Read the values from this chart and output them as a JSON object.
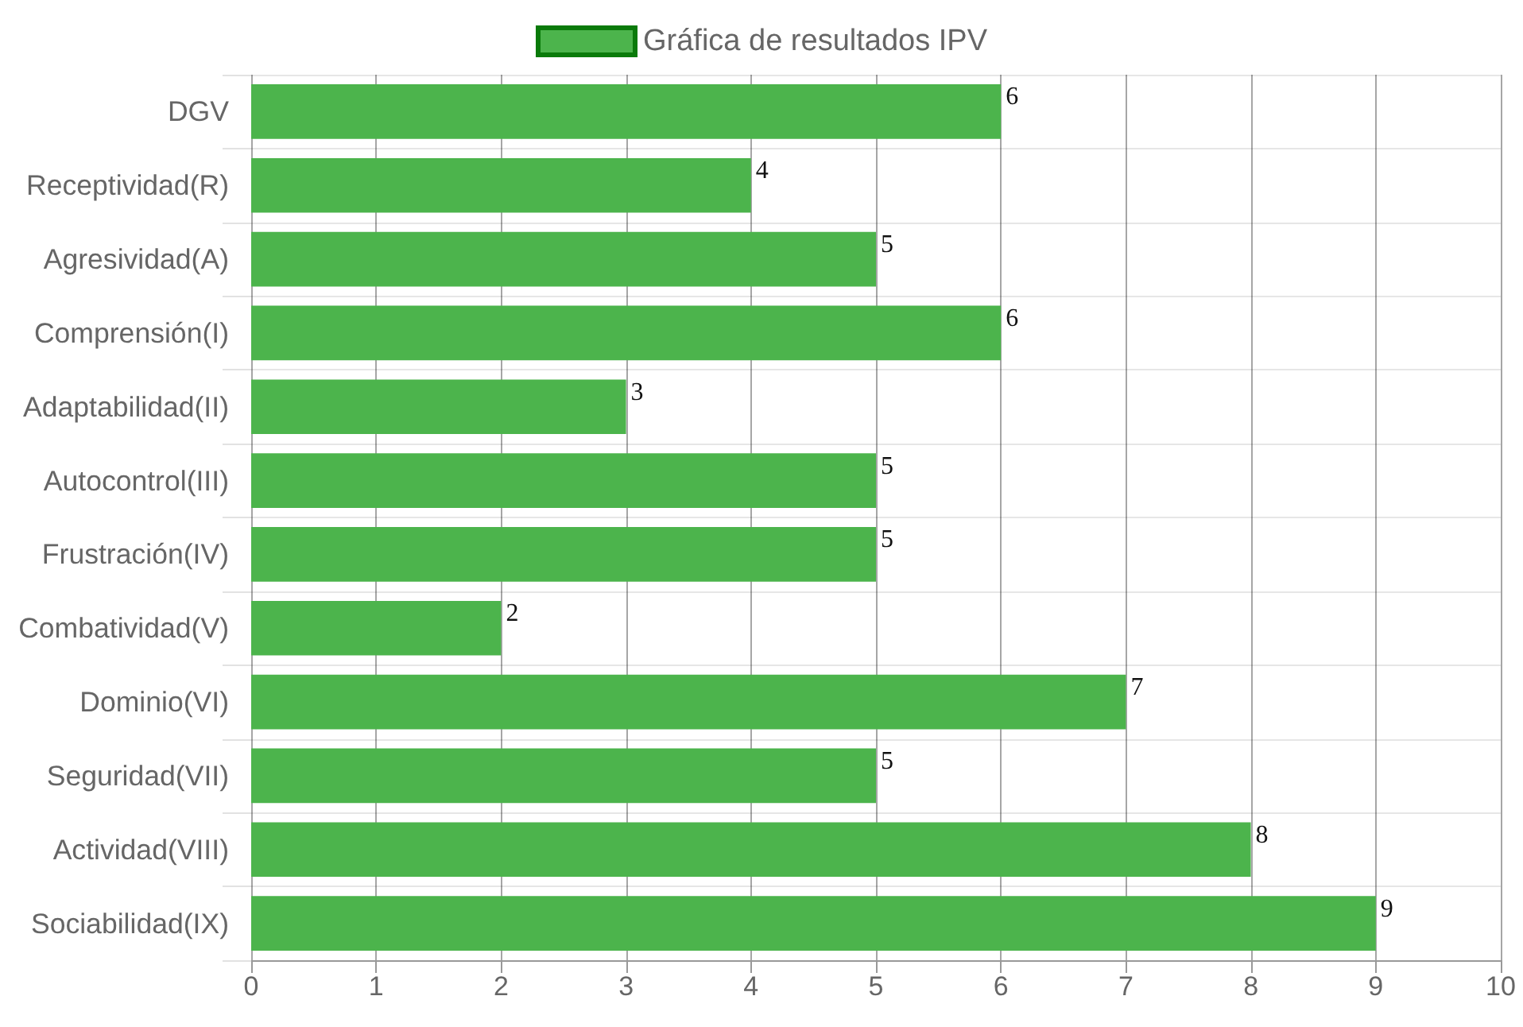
{
  "chart_data": {
    "type": "bar",
    "orientation": "horizontal",
    "categories": [
      "DGV",
      "Receptividad(R)",
      "Agresividad(A)",
      "Comprensión(I)",
      "Adaptabilidad(II)",
      "Autocontrol(III)",
      "Frustración(IV)",
      "Combatividad(V)",
      "Dominio(VI)",
      "Seguridad(VII)",
      "Actividad(VIII)",
      "Sociabilidad(IX)"
    ],
    "series": [
      {
        "name": "Gráfica de resultados IPV",
        "color": "#4cb44c",
        "values": [
          6,
          4,
          5,
          6,
          3,
          5,
          5,
          2,
          7,
          5,
          8,
          9
        ]
      }
    ],
    "xlim": [
      0,
      10
    ],
    "xticks": [
      0,
      1,
      2,
      3,
      4,
      5,
      6,
      7,
      8,
      9,
      10
    ],
    "grid": true,
    "legend": "top",
    "data_labels": true
  }
}
